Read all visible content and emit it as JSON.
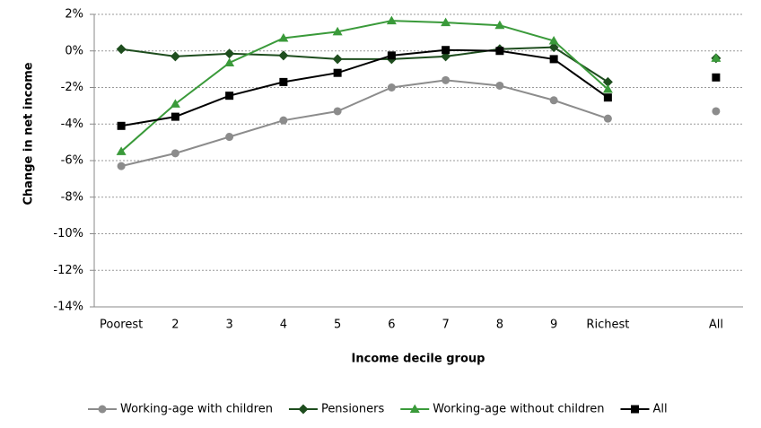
{
  "chart_data": {
    "type": "line",
    "xlabel": "Income decile group",
    "ylabel": "Change in net income",
    "categories": [
      "Poorest",
      "2",
      "3",
      "4",
      "5",
      "6",
      "7",
      "8",
      "9",
      "Richest",
      null,
      "All"
    ],
    "ylim": [
      -14,
      2
    ],
    "yticks": [
      {
        "value": 2,
        "label": "2%"
      },
      {
        "value": 0,
        "label": "0%"
      },
      {
        "value": -2,
        "label": "-2%"
      },
      {
        "value": -4,
        "label": "-4%"
      },
      {
        "value": -6,
        "label": "-6%"
      },
      {
        "value": -8,
        "label": "-8%"
      },
      {
        "value": -10,
        "label": "-10%"
      },
      {
        "value": -12,
        "label": "-12%"
      },
      {
        "value": -14,
        "label": "-14%"
      }
    ],
    "grid": true,
    "legend": "bottom",
    "series": [
      {
        "name": "Working-age with children",
        "color": "#8c8c8c",
        "marker": "circle",
        "values": [
          -6.3,
          -5.6,
          -4.7,
          -3.8,
          -3.3,
          -2.0,
          -1.6,
          -1.9,
          -2.7,
          -3.7,
          null,
          -3.3
        ]
      },
      {
        "name": "Pensioners",
        "color": "#1e4d1e",
        "marker": "diamond",
        "values": [
          0.1,
          -0.3,
          -0.15,
          -0.25,
          -0.45,
          -0.45,
          -0.3,
          0.1,
          0.2,
          -1.7,
          null,
          -0.4
        ]
      },
      {
        "name": "Working-age without children",
        "color": "#3a9a3a",
        "marker": "triangle",
        "values": [
          -5.5,
          -2.9,
          -0.65,
          0.7,
          1.05,
          1.65,
          1.55,
          1.4,
          0.55,
          -2.1,
          null,
          -0.4
        ]
      },
      {
        "name": "All",
        "color": "#000000",
        "marker": "square",
        "values": [
          -4.1,
          -3.6,
          -2.45,
          -1.7,
          -1.2,
          -0.25,
          0.05,
          0.0,
          -0.45,
          -2.55,
          null,
          -1.45
        ]
      }
    ]
  }
}
